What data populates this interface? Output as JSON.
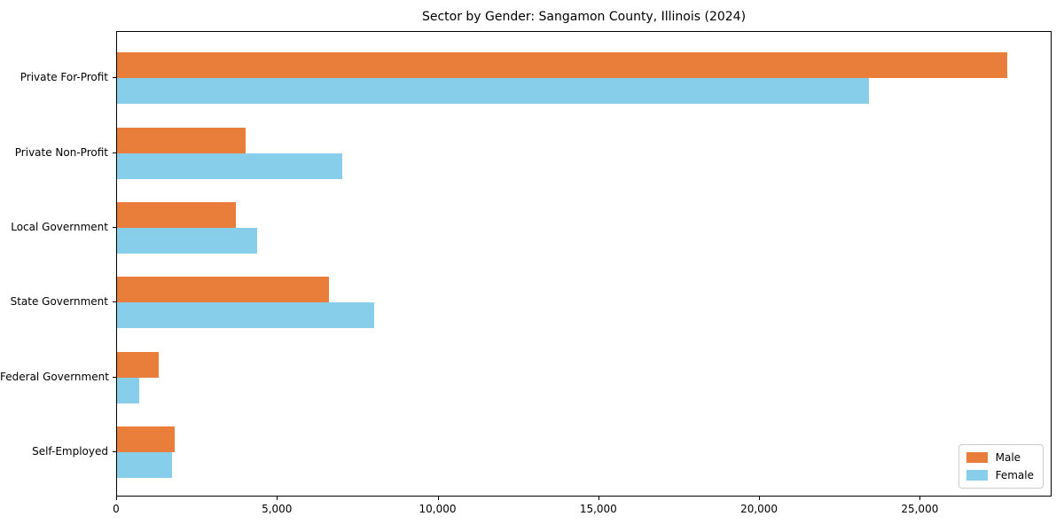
{
  "title": "Sector by Gender: Sangamon County, Illinois (2024)",
  "colors": {
    "male": "#e87e3a",
    "female": "#87ceeb",
    "spine": "#000000",
    "background": "#ffffff",
    "legend_border": "#cccccc"
  },
  "chart_data": {
    "type": "bar",
    "orientation": "horizontal",
    "title": "Sector by Gender: Sangamon County, Illinois (2024)",
    "xlabel": "",
    "ylabel": "",
    "grid": false,
    "xlim": [
      0,
      29100
    ],
    "categories": [
      "Private For-Profit",
      "Private Non-Profit",
      "Local Government",
      "State Government",
      "Federal Government",
      "Self-Employed"
    ],
    "series": [
      {
        "name": "Male",
        "color": "#e87e3a",
        "values": [
          27700,
          4000,
          3700,
          6600,
          1300,
          1800
        ]
      },
      {
        "name": "Female",
        "color": "#87ceeb",
        "values": [
          23400,
          7000,
          4350,
          8000,
          700,
          1700
        ]
      }
    ],
    "x_ticks": {
      "values": [
        0,
        5000,
        10000,
        15000,
        20000,
        25000
      ],
      "labels": [
        "0",
        "5,000",
        "10,000",
        "15,000",
        "20,000",
        "25,000"
      ]
    },
    "legend": {
      "position": "lower right",
      "entries": [
        "Male",
        "Female"
      ]
    }
  }
}
